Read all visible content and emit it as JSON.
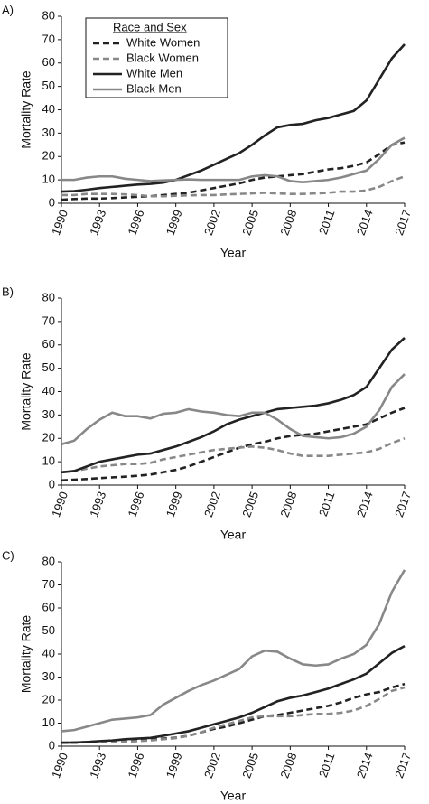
{
  "chart_data": [
    {
      "type": "line",
      "label": "A)",
      "y_label": "Mortality Rate",
      "x_label": "Year",
      "legend": "upper left",
      "legend_title": "Race and Sex",
      "x": [
        1990,
        1991,
        1992,
        1993,
        1994,
        1995,
        1996,
        1997,
        1998,
        1999,
        2000,
        2001,
        2002,
        2003,
        2004,
        2005,
        2006,
        2007,
        2008,
        2009,
        2010,
        2011,
        2012,
        2013,
        2014,
        2015,
        2016,
        2017
      ],
      "xlim": [
        1990,
        2017
      ],
      "xticks": [
        1990,
        1993,
        1996,
        1999,
        2002,
        2005,
        2008,
        2011,
        2014,
        2017
      ],
      "ylim": [
        0,
        80
      ],
      "yticks": [
        0,
        10,
        20,
        30,
        40,
        50,
        60,
        70,
        80
      ],
      "series": [
        {
          "name": "White Women",
          "color": "#222222",
          "style": "dashed",
          "values": [
            1.5,
            1.8,
            2,
            2,
            2.2,
            2.5,
            2.8,
            3,
            3.5,
            4,
            4.5,
            5.5,
            6.5,
            7.5,
            8.5,
            10,
            11,
            11.5,
            12,
            12.5,
            13.5,
            14.5,
            15,
            16,
            17.5,
            21,
            25,
            26
          ]
        },
        {
          "name": "Black Women",
          "color": "#888888",
          "style": "dashed",
          "values": [
            3.5,
            3.5,
            4,
            4,
            4,
            3.8,
            3.5,
            3,
            3,
            3.2,
            3.4,
            3.5,
            3.5,
            3.8,
            4,
            4.2,
            4.5,
            4.2,
            4,
            4,
            4.2,
            4.5,
            5,
            5,
            5.5,
            7,
            9.5,
            11.5
          ]
        },
        {
          "name": "White Men",
          "color": "#222222",
          "style": "solid",
          "values": [
            5,
            5.2,
            5.8,
            6.5,
            7,
            7.5,
            8,
            8.3,
            8.8,
            10,
            12,
            14,
            16.5,
            19,
            21.5,
            25,
            29,
            32.5,
            33.5,
            34,
            35.5,
            36.5,
            38,
            39.5,
            44,
            53,
            62,
            68
          ]
        },
        {
          "name": "Black Men",
          "color": "#888888",
          "style": "solid",
          "values": [
            10,
            10,
            11,
            11.5,
            11.5,
            10.5,
            10,
            9.5,
            9.8,
            10,
            10.2,
            10,
            10,
            10,
            10,
            11.5,
            12,
            11.5,
            9.5,
            9,
            9.5,
            10,
            11,
            12.5,
            14,
            19,
            25,
            28
          ]
        }
      ]
    },
    {
      "type": "line",
      "label": "B)",
      "y_label": "Mortality Rate",
      "x_label": "Year",
      "x": [
        1990,
        1991,
        1992,
        1993,
        1994,
        1995,
        1996,
        1997,
        1998,
        1999,
        2000,
        2001,
        2002,
        2003,
        2004,
        2005,
        2006,
        2007,
        2008,
        2009,
        2010,
        2011,
        2012,
        2013,
        2014,
        2015,
        2016,
        2017
      ],
      "xlim": [
        1990,
        2017
      ],
      "xticks": [
        1990,
        1993,
        1996,
        1999,
        2002,
        2005,
        2008,
        2011,
        2014,
        2017
      ],
      "ylim": [
        0,
        80
      ],
      "yticks": [
        0,
        10,
        20,
        30,
        40,
        50,
        60,
        70,
        80
      ],
      "series": [
        {
          "name": "White Women",
          "color": "#222222",
          "style": "dashed",
          "values": [
            2,
            2.3,
            2.6,
            3,
            3.3,
            3.6,
            4,
            4.5,
            5.5,
            6.5,
            8,
            10,
            12,
            14,
            16,
            17.5,
            18.5,
            20,
            21,
            21.5,
            22,
            23,
            24,
            25,
            26,
            28.5,
            31,
            33
          ]
        },
        {
          "name": "Black Women",
          "color": "#888888",
          "style": "dashed",
          "values": [
            5.5,
            6,
            7,
            8,
            8.5,
            9,
            9,
            9.5,
            11,
            12,
            13,
            14,
            15,
            15.5,
            16,
            16.5,
            16,
            15,
            13.5,
            12.5,
            12.5,
            12.5,
            13,
            13.5,
            14,
            15.5,
            18,
            20
          ]
        },
        {
          "name": "White Men",
          "color": "#222222",
          "style": "solid",
          "values": [
            5.5,
            6,
            8,
            10,
            11,
            12,
            13,
            13.5,
            15,
            16.5,
            18.5,
            20.5,
            23,
            26,
            28,
            29.5,
            31,
            32.5,
            33,
            33.5,
            34,
            35,
            36.5,
            38.5,
            42,
            50,
            58,
            63
          ]
        },
        {
          "name": "Black Men",
          "color": "#888888",
          "style": "solid",
          "values": [
            17.5,
            19,
            24,
            28,
            31,
            29.5,
            29.5,
            28.5,
            30.5,
            31,
            32.5,
            31.5,
            31,
            30,
            29.5,
            31,
            31,
            28,
            24,
            21,
            20.5,
            20,
            20.5,
            22,
            25,
            32,
            42,
            47.5
          ]
        }
      ]
    },
    {
      "type": "line",
      "label": "C)",
      "y_label": "Mortality Rate",
      "x_label": "Year",
      "x": [
        1990,
        1991,
        1992,
        1993,
        1994,
        1995,
        1996,
        1997,
        1998,
        1999,
        2000,
        2001,
        2002,
        2003,
        2004,
        2005,
        2006,
        2007,
        2008,
        2009,
        2010,
        2011,
        2012,
        2013,
        2014,
        2015,
        2016,
        2017
      ],
      "xlim": [
        1990,
        2017
      ],
      "xticks": [
        1990,
        1993,
        1996,
        1999,
        2002,
        2005,
        2008,
        2011,
        2014,
        2017
      ],
      "ylim": [
        0,
        80
      ],
      "yticks": [
        0,
        10,
        20,
        30,
        40,
        50,
        60,
        70,
        80
      ],
      "series": [
        {
          "name": "White Women",
          "color": "#222222",
          "style": "dashed",
          "values": [
            1.5,
            1.5,
            1.8,
            2,
            2.2,
            2.5,
            2.8,
            3,
            3.3,
            3.7,
            4.5,
            6,
            7.5,
            8.5,
            10,
            11.5,
            13,
            13.5,
            14.5,
            15.5,
            16.5,
            17.5,
            19,
            21,
            22.5,
            23.5,
            25.5,
            27
          ]
        },
        {
          "name": "Black Women",
          "color": "#888888",
          "style": "dashed",
          "values": [
            1.5,
            1.5,
            1.8,
            2,
            2,
            2,
            2.2,
            2.5,
            3,
            3.5,
            4.5,
            6,
            8,
            9.5,
            11,
            12.5,
            13,
            13,
            13,
            13.5,
            14,
            14,
            14.5,
            15.5,
            17.5,
            20.5,
            24,
            25.5
          ]
        },
        {
          "name": "White Men",
          "color": "#222222",
          "style": "solid",
          "values": [
            1.5,
            1.6,
            1.8,
            2.2,
            2.5,
            3,
            3.3,
            3.6,
            4.5,
            5.5,
            6.5,
            8,
            9.5,
            11,
            12.5,
            14.5,
            17,
            19.5,
            21,
            22,
            23.5,
            25,
            27,
            29,
            31.5,
            36,
            40.5,
            43.5
          ]
        },
        {
          "name": "Black Men",
          "color": "#888888",
          "style": "solid",
          "values": [
            6.5,
            7,
            8.5,
            10,
            11.5,
            12,
            12.5,
            13.5,
            18,
            21,
            24,
            26.5,
            28.5,
            31,
            33.5,
            39,
            41.5,
            41,
            38,
            35.5,
            35,
            35.5,
            38,
            40,
            44,
            53,
            67,
            76.5
          ]
        }
      ]
    }
  ]
}
